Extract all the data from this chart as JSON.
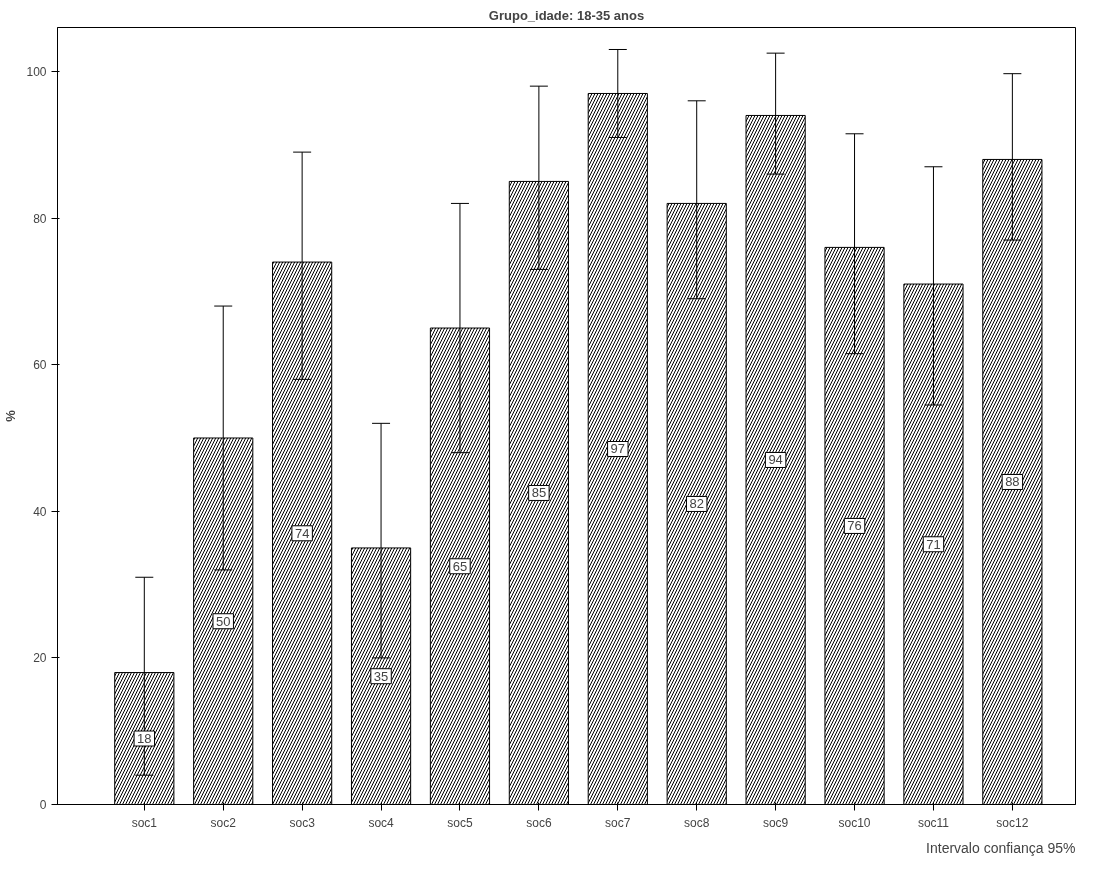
{
  "chart_data": {
    "type": "bar",
    "title": "Grupo_idade: 18-35 anos",
    "ylabel": "%",
    "categories": [
      "soc1",
      "soc2",
      "soc3",
      "soc4",
      "soc5",
      "soc6",
      "soc7",
      "soc8",
      "soc9",
      "soc10",
      "soc11",
      "soc12"
    ],
    "values": [
      18,
      50,
      74,
      35,
      65,
      85,
      97,
      82,
      94,
      76,
      71,
      88
    ],
    "errors": [
      [
        4,
        31
      ],
      [
        32,
        68
      ],
      [
        58,
        89
      ],
      [
        20,
        52
      ],
      [
        48,
        82
      ],
      [
        73,
        98
      ],
      [
        91,
        103
      ],
      [
        69,
        96
      ],
      [
        86,
        102.5
      ],
      [
        61.5,
        91.5
      ],
      [
        54.5,
        87
      ],
      [
        77,
        99.7
      ]
    ],
    "color": "#ffffff",
    "ylim": [
      0,
      106
    ],
    "yticks": [
      0,
      20,
      40,
      60,
      80,
      100
    ],
    "grid": false,
    "data_labels": true,
    "annotations": [
      "Intervalo confiança 95%"
    ]
  }
}
